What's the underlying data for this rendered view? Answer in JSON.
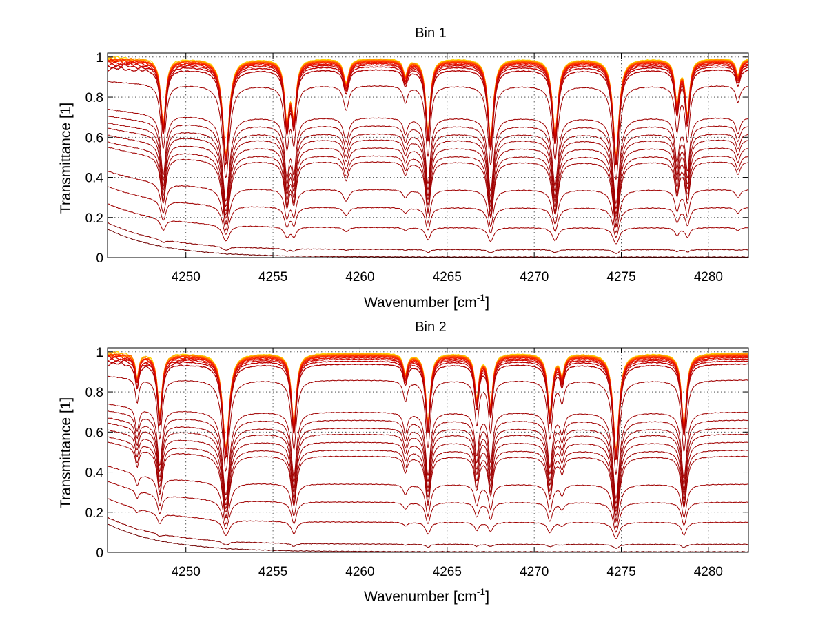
{
  "chart_data": [
    {
      "type": "line",
      "title": "Bin 1",
      "xlabel": "Wavenumber [cm",
      "xlabel_sup": "-1",
      "xlabel_close": "]",
      "ylabel": "Transmittance [1]",
      "xlim": [
        4245.5,
        4282.3
      ],
      "ylim": [
        0,
        1.02
      ],
      "xticks": [
        4250,
        4255,
        4260,
        4265,
        4270,
        4275,
        4280
      ],
      "xtick_labels": [
        "4250",
        "4255",
        "4260",
        "4265",
        "4270",
        "4275",
        "4280"
      ],
      "yticks": [
        0,
        0.2,
        0.4,
        0.6,
        0.8,
        1
      ],
      "ytick_labels": [
        "0",
        "0.2",
        "0.4",
        "0.6",
        "0.8",
        "1"
      ],
      "grid": true,
      "lines": [
        {
          "center": 4248.7,
          "depth": 0.55,
          "width": 0.16
        },
        {
          "center": 4252.3,
          "depth": 0.9,
          "width": 0.2
        },
        {
          "center": 4255.8,
          "depth": 0.5,
          "width": 0.15
        },
        {
          "center": 4256.2,
          "depth": 0.45,
          "width": 0.15
        },
        {
          "center": 4259.2,
          "depth": 0.18,
          "width": 0.18
        },
        {
          "center": 4262.6,
          "depth": 0.12,
          "width": 0.15
        },
        {
          "center": 4263.9,
          "depth": 0.62,
          "width": 0.15
        },
        {
          "center": 4267.5,
          "depth": 0.72,
          "width": 0.17
        },
        {
          "center": 4271.2,
          "depth": 0.65,
          "width": 0.18
        },
        {
          "center": 4274.7,
          "depth": 0.92,
          "width": 0.18
        },
        {
          "center": 4278.2,
          "depth": 0.35,
          "width": 0.14
        },
        {
          "center": 4278.8,
          "depth": 0.45,
          "width": 0.14
        },
        {
          "center": 4281.7,
          "depth": 0.12,
          "width": 0.15
        }
      ],
      "series": [
        {
          "level": 0.995,
          "color": "#ffd400"
        },
        {
          "level": 0.992,
          "color": "#ffb000"
        },
        {
          "level": 0.99,
          "color": "#ff9000"
        },
        {
          "level": 0.988,
          "color": "#ff7000"
        },
        {
          "level": 0.985,
          "color": "#ff5000"
        },
        {
          "level": 0.982,
          "color": "#ff3000"
        },
        {
          "level": 0.978,
          "color": "#f01800"
        },
        {
          "level": 0.972,
          "color": "#e01000"
        },
        {
          "level": 0.965,
          "color": "#d00800"
        },
        {
          "level": 0.955,
          "color": "#c00000"
        },
        {
          "level": 0.94,
          "color": "#b00000"
        },
        {
          "level": 0.86,
          "color": "#a00000"
        },
        {
          "level": 0.7,
          "color": "#a00000"
        },
        {
          "level": 0.66,
          "color": "#a00000"
        },
        {
          "level": 0.62,
          "color": "#a00000"
        },
        {
          "level": 0.59,
          "color": "#a00000"
        },
        {
          "level": 0.55,
          "color": "#a00000"
        },
        {
          "level": 0.51,
          "color": "#a00000"
        },
        {
          "level": 0.48,
          "color": "#a00000"
        },
        {
          "level": 0.34,
          "color": "#a00000"
        },
        {
          "level": 0.25,
          "color": "#a00000"
        },
        {
          "level": 0.15,
          "color": "#a00000"
        },
        {
          "level": 0.04,
          "color": "#8a0000"
        },
        {
          "level": 0.003,
          "color": "#700000"
        }
      ]
    },
    {
      "type": "line",
      "title": "Bin 2",
      "xlabel": "Wavenumber [cm",
      "xlabel_sup": "-1",
      "xlabel_close": "]",
      "ylabel": "Transmittance [1]",
      "xlim": [
        4245.5,
        4282.3
      ],
      "ylim": [
        0,
        1.02
      ],
      "xticks": [
        4250,
        4255,
        4260,
        4265,
        4270,
        4275,
        4280
      ],
      "xtick_labels": [
        "4250",
        "4255",
        "4260",
        "4265",
        "4270",
        "4275",
        "4280"
      ],
      "yticks": [
        0,
        0.2,
        0.4,
        0.6,
        0.8,
        1
      ],
      "ytick_labels": [
        "0",
        "0.2",
        "0.4",
        "0.6",
        "0.8",
        "1"
      ],
      "grid": true,
      "lines": [
        {
          "center": 4247.2,
          "depth": 0.18,
          "width": 0.12
        },
        {
          "center": 4248.5,
          "depth": 0.5,
          "width": 0.15
        },
        {
          "center": 4252.3,
          "depth": 0.88,
          "width": 0.2
        },
        {
          "center": 4256.2,
          "depth": 0.6,
          "width": 0.16
        },
        {
          "center": 4262.6,
          "depth": 0.15,
          "width": 0.14
        },
        {
          "center": 4263.9,
          "depth": 0.58,
          "width": 0.15
        },
        {
          "center": 4266.7,
          "depth": 0.35,
          "width": 0.14
        },
        {
          "center": 4267.5,
          "depth": 0.42,
          "width": 0.14
        },
        {
          "center": 4270.9,
          "depth": 0.48,
          "width": 0.16
        },
        {
          "center": 4271.6,
          "depth": 0.15,
          "width": 0.14
        },
        {
          "center": 4274.7,
          "depth": 0.92,
          "width": 0.18
        },
        {
          "center": 4278.6,
          "depth": 0.62,
          "width": 0.16
        }
      ],
      "series": [
        {
          "level": 0.995,
          "color": "#ffd400"
        },
        {
          "level": 0.992,
          "color": "#ffb000"
        },
        {
          "level": 0.99,
          "color": "#ff9000"
        },
        {
          "level": 0.988,
          "color": "#ff7000"
        },
        {
          "level": 0.985,
          "color": "#ff5000"
        },
        {
          "level": 0.982,
          "color": "#ff3000"
        },
        {
          "level": 0.978,
          "color": "#f01800"
        },
        {
          "level": 0.972,
          "color": "#e01000"
        },
        {
          "level": 0.965,
          "color": "#d00800"
        },
        {
          "level": 0.955,
          "color": "#c00000"
        },
        {
          "level": 0.94,
          "color": "#b00000"
        },
        {
          "level": 0.86,
          "color": "#a00000"
        },
        {
          "level": 0.7,
          "color": "#a00000"
        },
        {
          "level": 0.66,
          "color": "#a00000"
        },
        {
          "level": 0.62,
          "color": "#a00000"
        },
        {
          "level": 0.59,
          "color": "#a00000"
        },
        {
          "level": 0.55,
          "color": "#a00000"
        },
        {
          "level": 0.51,
          "color": "#a00000"
        },
        {
          "level": 0.48,
          "color": "#a00000"
        },
        {
          "level": 0.34,
          "color": "#a00000"
        },
        {
          "level": 0.25,
          "color": "#a00000"
        },
        {
          "level": 0.15,
          "color": "#a00000"
        },
        {
          "level": 0.04,
          "color": "#8a0000"
        },
        {
          "level": 0.003,
          "color": "#700000"
        }
      ]
    }
  ]
}
